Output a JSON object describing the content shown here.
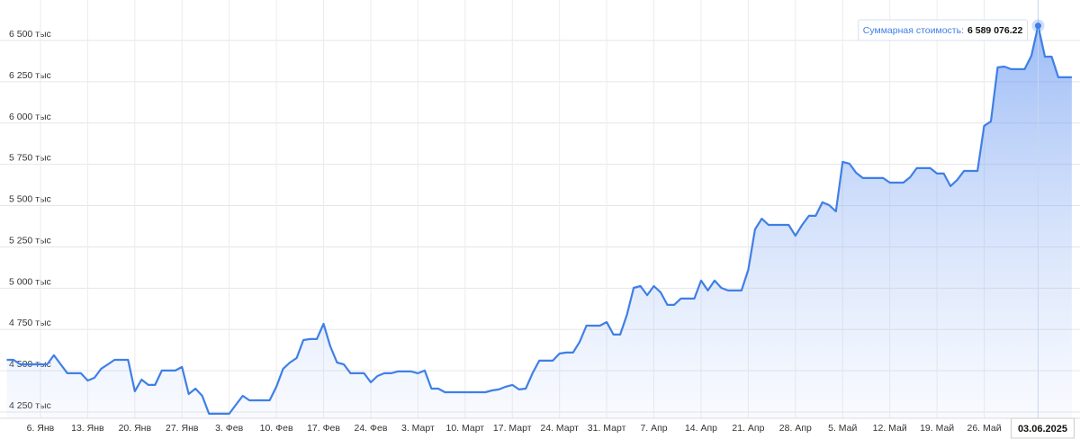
{
  "chart_data": {
    "type": "area",
    "tooltip_label": "Суммарная стоимость:",
    "categories": [
      null,
      null,
      null,
      null,
      null,
      "6. Янв",
      null,
      null,
      null,
      null,
      null,
      null,
      "13. Янв",
      null,
      null,
      null,
      null,
      null,
      null,
      "20. Янв",
      null,
      null,
      null,
      null,
      null,
      null,
      "27. Янв",
      null,
      null,
      null,
      null,
      null,
      null,
      "3. Фев",
      null,
      null,
      null,
      null,
      null,
      null,
      "10. Фев",
      null,
      null,
      null,
      null,
      null,
      null,
      "17. Фев",
      null,
      null,
      null,
      null,
      null,
      null,
      "24. Фев",
      null,
      null,
      null,
      null,
      null,
      null,
      "3. Март",
      null,
      null,
      null,
      null,
      null,
      null,
      "10. Март",
      null,
      null,
      null,
      null,
      null,
      null,
      "17. Март",
      null,
      null,
      null,
      null,
      null,
      null,
      "24. Март",
      null,
      null,
      null,
      null,
      null,
      null,
      "31. Март",
      null,
      null,
      null,
      null,
      null,
      null,
      "7. Апр",
      null,
      null,
      null,
      null,
      null,
      null,
      "14. Апр",
      null,
      null,
      null,
      null,
      null,
      null,
      "21. Апр",
      null,
      null,
      null,
      null,
      null,
      null,
      "28. Апр",
      null,
      null,
      null,
      null,
      null,
      null,
      "5. Май",
      null,
      null,
      null,
      null,
      null,
      null,
      "12. Май",
      null,
      null,
      null,
      null,
      null,
      null,
      "19. Май",
      null,
      null,
      null,
      null,
      null,
      null,
      "26. Май",
      null,
      null,
      null,
      null,
      null,
      null,
      null,
      "03.06.2025",
      null,
      null,
      null,
      null,
      null
    ],
    "values": [
      4566,
      4566,
      4539,
      4539,
      4539,
      4539,
      4539,
      4594,
      4539,
      4485,
      4485,
      4485,
      4441,
      4457,
      4512,
      4539,
      4566,
      4566,
      4566,
      4376,
      4446,
      4414,
      4414,
      4501,
      4501,
      4501,
      4523,
      4359,
      4392,
      4348,
      4240,
      4240,
      4240,
      4240,
      4294,
      4348,
      4321,
      4321,
      4321,
      4321,
      4403,
      4512,
      4550,
      4577,
      4686,
      4692,
      4692,
      4784,
      4648,
      4550,
      4539,
      4485,
      4485,
      4485,
      4430,
      4468,
      4485,
      4485,
      4496,
      4496,
      4496,
      4485,
      4501,
      4392,
      4392,
      4370,
      4370,
      4370,
      4370,
      4370,
      4370,
      4370,
      4381,
      4387,
      4403,
      4414,
      4387,
      4392,
      4485,
      4561,
      4561,
      4561,
      4604,
      4610,
      4610,
      4675,
      4773,
      4773,
      4773,
      4795,
      4719,
      4719,
      4839,
      5002,
      5013,
      4958,
      5013,
      4975,
      4899,
      4899,
      4937,
      4937,
      4937,
      5046,
      4986,
      5046,
      5002,
      4986,
      4986,
      4986,
      5111,
      5356,
      5421,
      5383,
      5383,
      5383,
      5383,
      5318,
      5383,
      5438,
      5438,
      5520,
      5503,
      5465,
      5765,
      5754,
      5699,
      5667,
      5667,
      5667,
      5667,
      5639,
      5639,
      5639,
      5672,
      5727,
      5727,
      5727,
      5694,
      5694,
      5618,
      5656,
      5710,
      5710,
      5710,
      5983,
      6010,
      6337,
      6342,
      6326,
      6326,
      6326,
      6407,
      6589.07622,
      6402,
      6402,
      6277,
      6277,
      6277
    ],
    "value_labels": [
      null,
      null,
      null,
      null,
      null,
      null,
      null,
      null,
      null,
      null,
      null,
      null,
      null,
      null,
      null,
      null,
      null,
      null,
      null,
      null,
      null,
      null,
      null,
      null,
      null,
      null,
      null,
      null,
      null,
      null,
      null,
      null,
      null,
      null,
      null,
      null,
      null,
      null,
      null,
      null,
      null,
      null,
      null,
      null,
      null,
      null,
      null,
      null,
      null,
      null,
      null,
      null,
      null,
      null,
      null,
      null,
      null,
      null,
      null,
      null,
      null,
      null,
      null,
      null,
      null,
      null,
      null,
      null,
      null,
      null,
      null,
      null,
      null,
      null,
      null,
      null,
      null,
      null,
      null,
      null,
      null,
      null,
      null,
      null,
      null,
      null,
      null,
      null,
      null,
      null,
      null,
      null,
      null,
      null,
      null,
      null,
      null,
      null,
      null,
      null,
      null,
      null,
      null,
      null,
      null,
      null,
      null,
      null,
      null,
      null,
      null,
      null,
      null,
      null,
      null,
      null,
      null,
      null,
      null,
      null,
      null,
      null,
      null,
      null,
      null,
      null,
      null,
      null,
      null,
      null,
      null,
      null,
      null,
      null,
      null,
      null,
      null,
      null,
      null,
      null,
      null,
      null,
      null,
      null,
      null,
      null,
      null,
      null,
      null,
      null,
      null,
      null,
      null,
      "6 589 076.22",
      null,
      null,
      null,
      null,
      null
    ],
    "color": "#3f7fe6",
    "ylim": [
      4212,
      6745
    ],
    "yticks": [
      {
        "value": 4250,
        "label": "4 250 тыс"
      },
      {
        "value": 4500,
        "label": "4 500 тыс"
      },
      {
        "value": 4750,
        "label": "4 750 тыс"
      },
      {
        "value": 5000,
        "label": "5 000 тыс"
      },
      {
        "value": 5250,
        "label": "5 250 тыс"
      },
      {
        "value": 5500,
        "label": "5 500 тыс"
      },
      {
        "value": 5750,
        "label": "5 750 тыс"
      },
      {
        "value": 6000,
        "label": "6 000 тыс"
      },
      {
        "value": 6250,
        "label": "6 250 тыс"
      },
      {
        "value": 6500,
        "label": "6 500 тыс"
      }
    ],
    "grid": true
  }
}
